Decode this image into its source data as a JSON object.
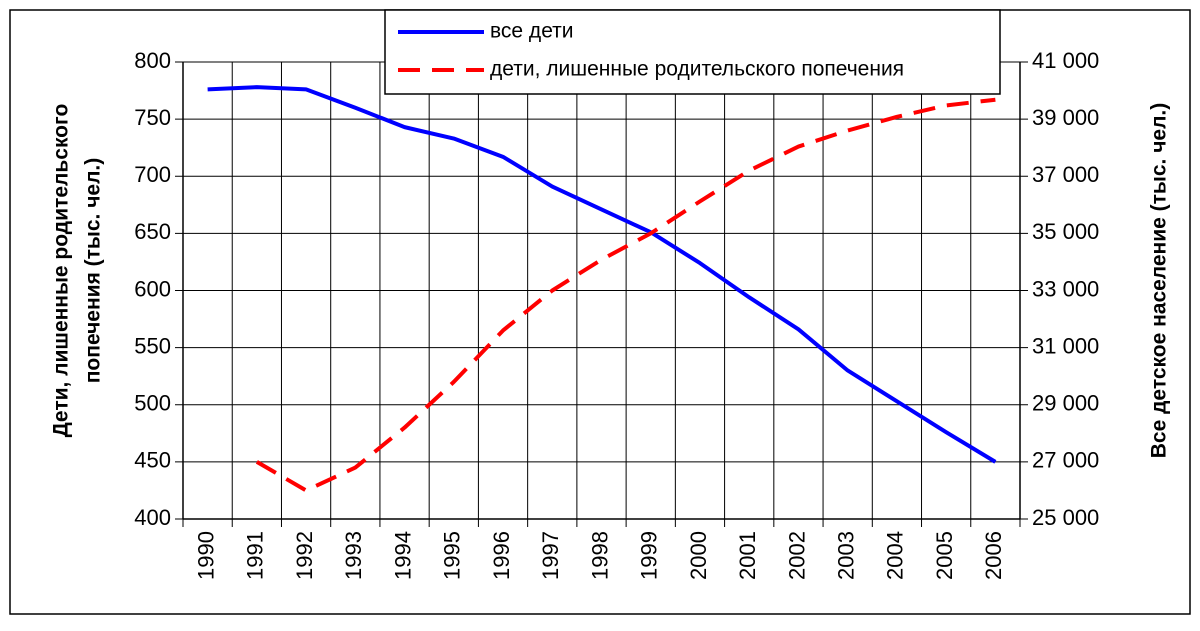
{
  "chart_data": {
    "type": "line",
    "ylabel": [
      "Дети, лишенные родительского",
      "попечения (тыс. чел.)"
    ],
    "y2label": "Все детское население (тыс. чел.)",
    "categories": [
      "1990",
      "1991",
      "1992",
      "1993",
      "1994",
      "1995",
      "1996",
      "1997",
      "1998",
      "1999",
      "2000",
      "2001",
      "2002",
      "2003",
      "2004",
      "2005",
      "2006"
    ],
    "series": [
      {
        "name": "все дети",
        "color": "#0000ff",
        "dash": false,
        "axis": "y2",
        "values": [
          40040,
          40120,
          40040,
          39400,
          38720,
          38320,
          37680,
          36640,
          35840,
          35040,
          33960,
          32760,
          31640,
          30200,
          29120,
          28040,
          27000
        ]
      },
      {
        "name": "дети, лишенные родительского попечения",
        "color": "#ff0000",
        "dash": true,
        "values": [
          null,
          450,
          425,
          445,
          480,
          520,
          565,
          600,
          627,
          650,
          678,
          705,
          726,
          740,
          752,
          762,
          767
        ]
      }
    ],
    "ylim": [
      400,
      800
    ],
    "yticks": [
      400,
      450,
      500,
      550,
      600,
      650,
      700,
      750,
      800
    ],
    "y2lim": [
      25000,
      41000
    ],
    "y2ticks": [
      {
        "value": 25000,
        "label": "25 000"
      },
      {
        "value": 27000,
        "label": "27 000"
      },
      {
        "value": 29000,
        "label": "29 000"
      },
      {
        "value": 31000,
        "label": "31 000"
      },
      {
        "value": 33000,
        "label": "33 000"
      },
      {
        "value": 35000,
        "label": "35 000"
      },
      {
        "value": 37000,
        "label": "37 000"
      },
      {
        "value": 39000,
        "label": "39 000"
      },
      {
        "value": 41000,
        "label": "41 000"
      }
    ],
    "grid": true,
    "legend": "top"
  }
}
